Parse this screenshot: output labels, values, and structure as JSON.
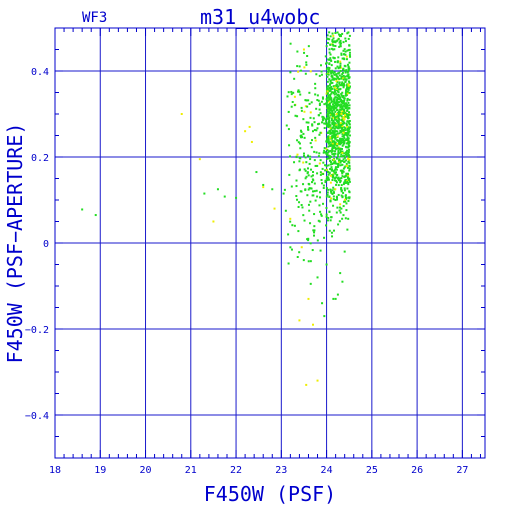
{
  "chart_data": {
    "type": "scatter",
    "title": "m31_u4wobc",
    "subtitle": "WF3",
    "xlabel": "F450W (PSF)",
    "ylabel": "F450W (PSF−APERTURE)",
    "xlim": [
      18,
      27.5
    ],
    "ylim": [
      -0.5,
      0.5
    ],
    "x_ticks": [
      18,
      19,
      20,
      21,
      22,
      23,
      24,
      25,
      26,
      27
    ],
    "y_ticks": [
      -0.4,
      -0.2,
      0,
      0.2,
      0.4
    ],
    "y_tick_labels": [
      "−0.4",
      "−0.2",
      "0",
      "0.2",
      "0.4"
    ],
    "grid": true,
    "colors": {
      "axis": "#0000cc",
      "grid": "#1a1acc",
      "green": "#22dd22",
      "yellow": "#eeee00"
    },
    "series": [
      {
        "color": "#22dd22",
        "points": [
          [
            18.6,
            0.078
          ],
          [
            18.9,
            0.065
          ],
          [
            21.3,
            0.115
          ],
          [
            21.6,
            0.125
          ],
          [
            21.75,
            0.108
          ],
          [
            22.0,
            0.105
          ],
          [
            22.45,
            0.165
          ],
          [
            22.6,
            0.135
          ],
          [
            22.8,
            0.125
          ],
          [
            23.05,
            0.115
          ],
          [
            23.1,
            0.075
          ],
          [
            23.15,
            0.02
          ],
          [
            23.2,
            -0.01
          ],
          [
            23.3,
            0.04
          ],
          [
            23.4,
            0.19
          ],
          [
            23.55,
            0.42
          ],
          [
            23.6,
            0.28
          ],
          [
            23.65,
            -0.095
          ],
          [
            23.7,
            0.12
          ],
          [
            23.75,
            0.36
          ],
          [
            23.8,
            -0.08
          ],
          [
            23.85,
            0.05
          ],
          [
            23.9,
            -0.14
          ],
          [
            23.95,
            -0.17
          ],
          [
            24.0,
            -0.05
          ],
          [
            24.05,
            0.32
          ],
          [
            24.1,
            0.06
          ],
          [
            24.15,
            -0.13
          ],
          [
            24.2,
            -0.13
          ],
          [
            24.25,
            -0.12
          ],
          [
            24.3,
            -0.07
          ],
          [
            24.35,
            -0.09
          ],
          [
            24.4,
            -0.02
          ],
          [
            24.45,
            0.14
          ],
          [
            24.5,
            0.46
          ]
        ]
      },
      {
        "color": "#eeee00",
        "points": [
          [
            20.8,
            0.3
          ],
          [
            21.2,
            0.195
          ],
          [
            21.5,
            0.05
          ],
          [
            22.2,
            0.26
          ],
          [
            22.3,
            0.27
          ],
          [
            22.35,
            0.235
          ],
          [
            22.6,
            0.13
          ],
          [
            22.85,
            0.08
          ],
          [
            23.3,
            0.34
          ],
          [
            23.5,
            0.45
          ],
          [
            23.6,
            -0.13
          ],
          [
            23.7,
            -0.19
          ],
          [
            23.55,
            -0.33
          ],
          [
            23.8,
            -0.32
          ],
          [
            24.3,
            0.09
          ],
          [
            24.2,
            0.22
          ],
          [
            23.85,
            0.185
          ],
          [
            24.35,
            0.31
          ],
          [
            23.4,
            -0.18
          ]
        ]
      }
    ]
  }
}
